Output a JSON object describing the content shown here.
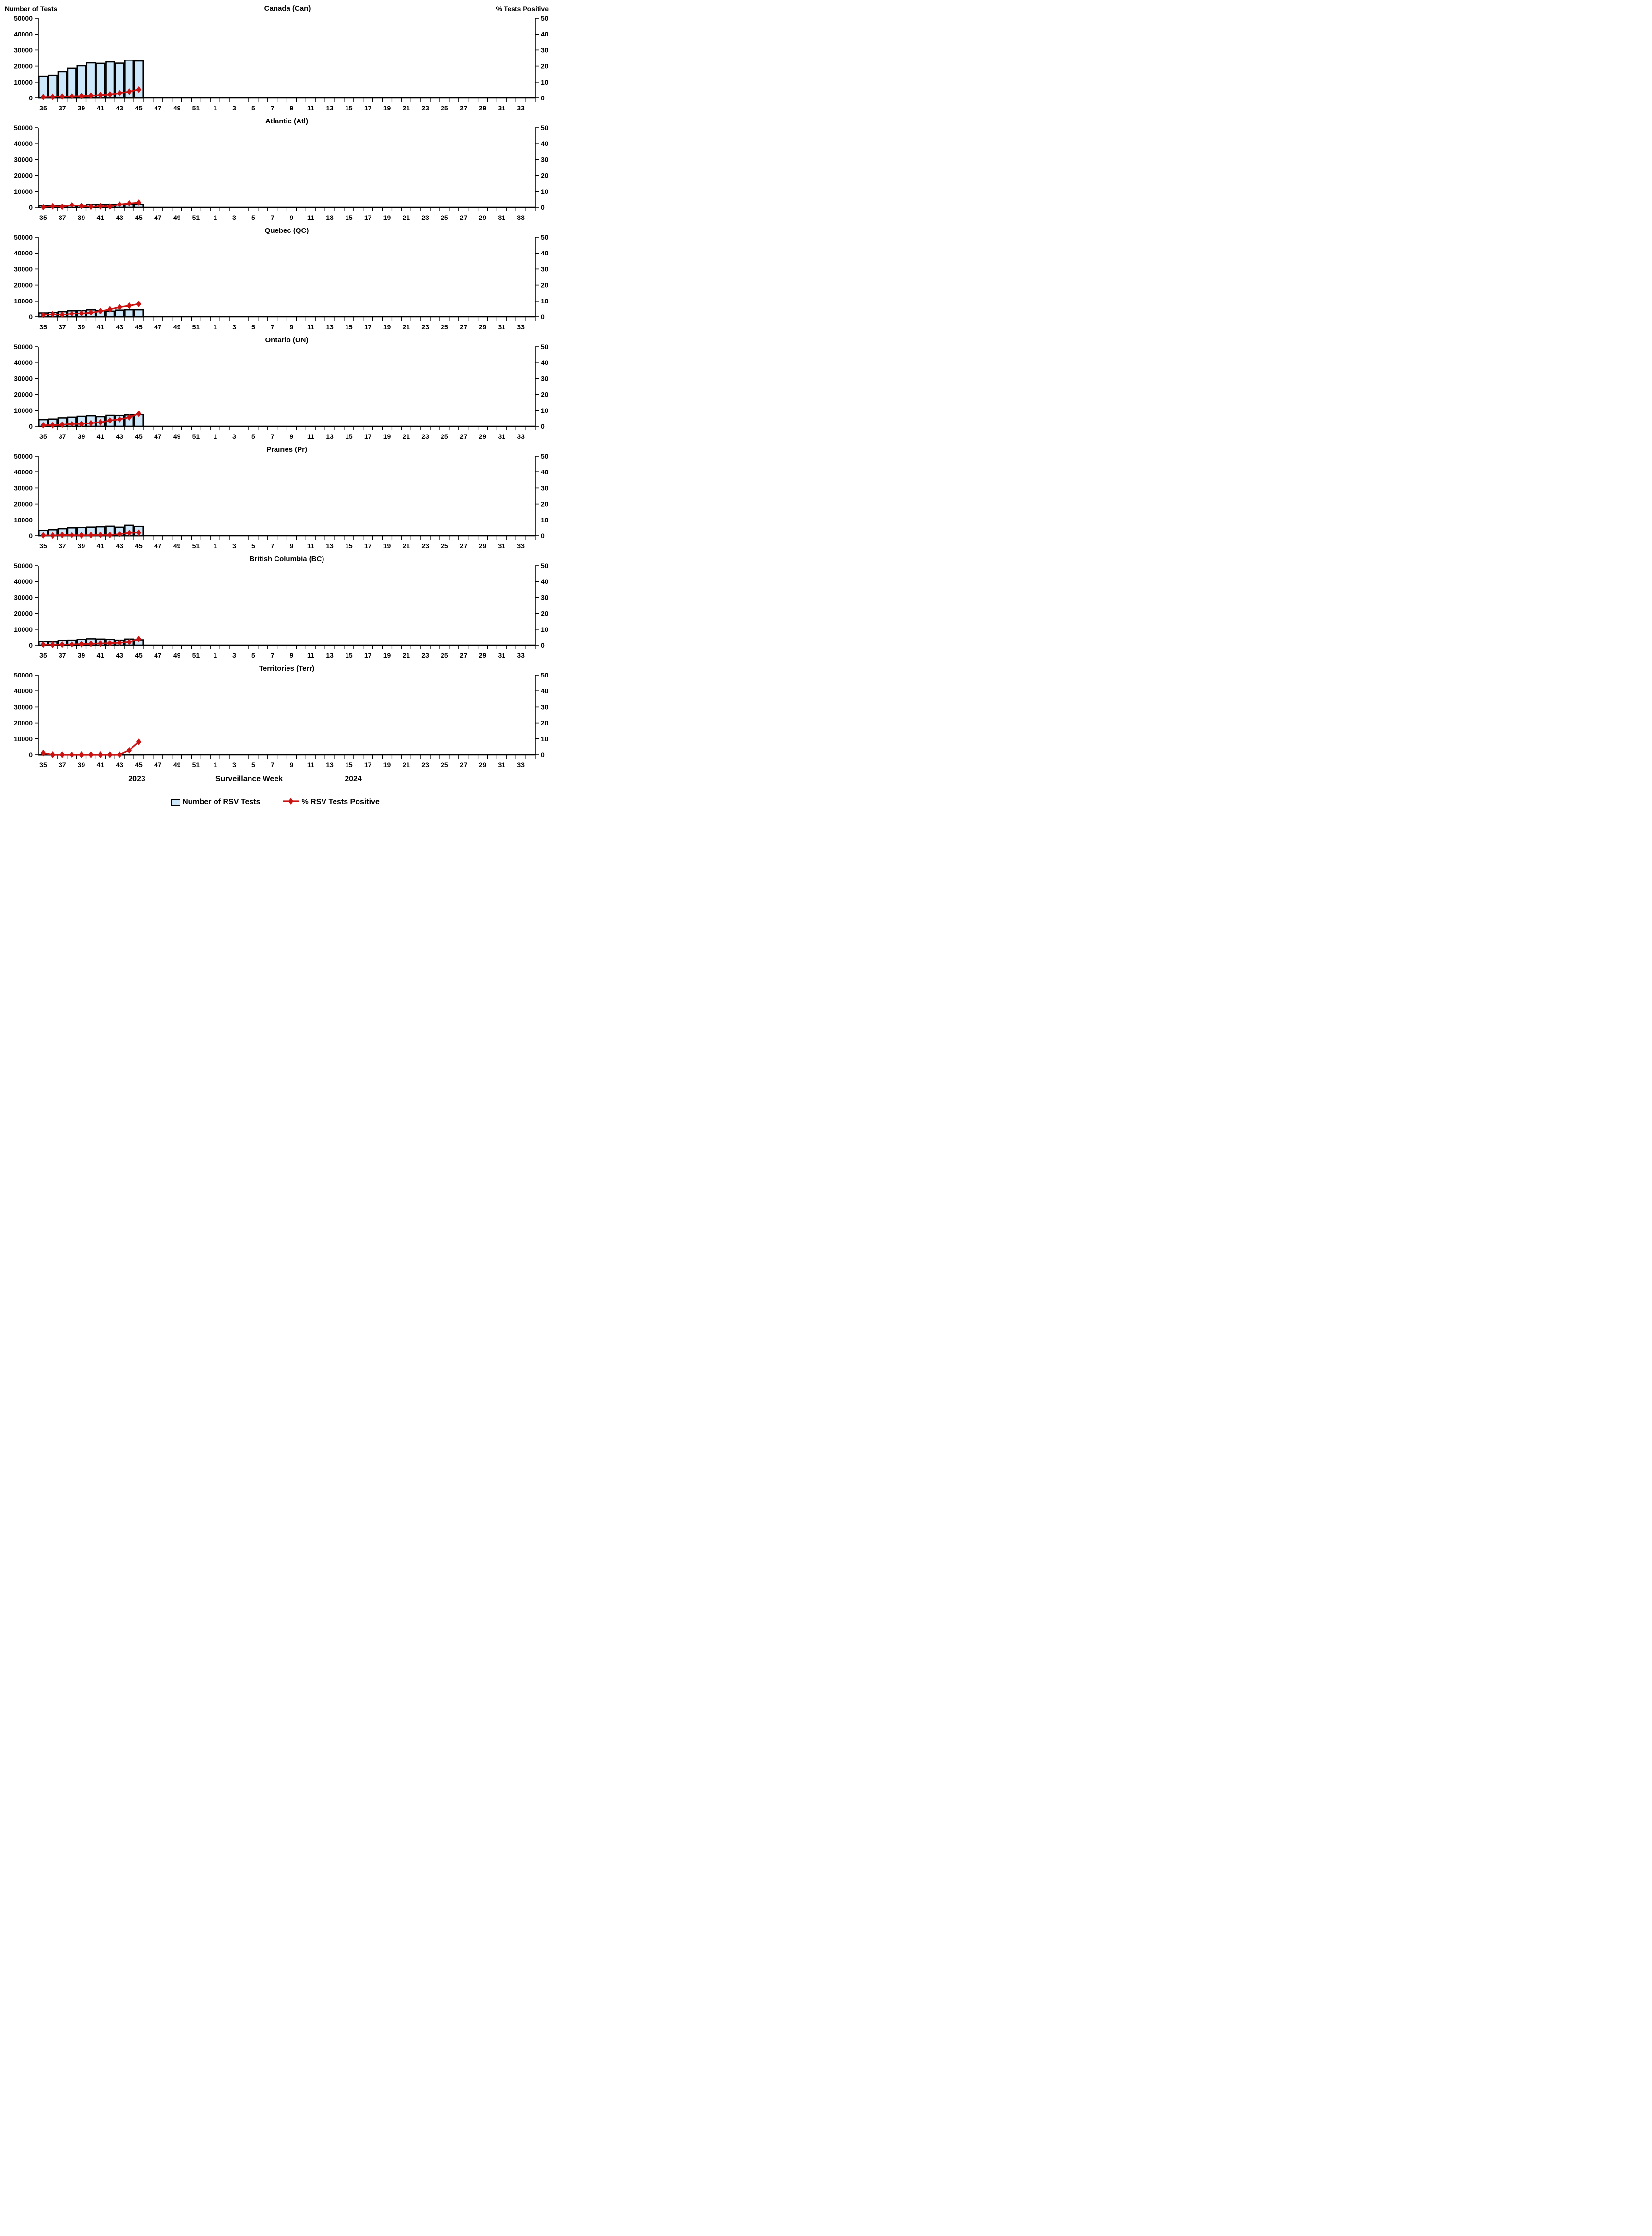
{
  "header": {
    "left_axis_title": "Number of Tests",
    "right_axis_title": "% Tests Positive"
  },
  "footer": {
    "year_left": "2023",
    "axis_title": "Surveillance Week",
    "year_right": "2024"
  },
  "legend": {
    "items": [
      {
        "label": "Number of RSV Tests",
        "marker": "bar-swatch"
      },
      {
        "label": "% RSV Tests Positive",
        "marker": "line-diamond"
      }
    ]
  },
  "colors": {
    "bar_fill": "#cce6fa",
    "bar_border": "#000000",
    "line": "#cc1111",
    "axis": "#000000"
  },
  "axes": {
    "left": {
      "title": "Number of Tests",
      "ticks": [
        0,
        10000,
        20000,
        30000,
        40000,
        50000
      ],
      "max": 50000
    },
    "right": {
      "title": "% Tests Positive",
      "ticks": [
        0,
        10,
        20,
        30,
        40,
        50
      ],
      "max": 50
    },
    "x": {
      "title": "Surveillance Week",
      "weeks_2023": [
        35,
        36,
        37,
        38,
        39,
        40,
        41,
        42,
        43,
        44,
        45,
        46,
        47,
        48,
        49,
        50,
        51,
        52
      ],
      "weeks_2024": [
        1,
        2,
        3,
        4,
        5,
        6,
        7,
        8,
        9,
        10,
        11,
        12,
        13,
        14,
        15,
        16,
        17,
        18,
        19,
        20,
        21,
        22,
        23,
        24,
        25,
        26,
        27,
        28,
        29,
        30,
        31,
        32,
        33,
        34
      ],
      "tick_labels": [
        35,
        37,
        39,
        41,
        43,
        45,
        47,
        49,
        51,
        1,
        3,
        5,
        7,
        9,
        11,
        13,
        15,
        17,
        19,
        21,
        23,
        25,
        27,
        29,
        31,
        33
      ]
    }
  },
  "chart_data": [
    {
      "type": "bar+line",
      "title": "Canada (Can)",
      "categories": [
        35,
        36,
        37,
        38,
        39,
        40,
        41,
        42,
        43,
        44,
        45
      ],
      "ylim_left": [
        0,
        50000
      ],
      "ylim_right": [
        0,
        50
      ],
      "series": [
        {
          "name": "Number of RSV Tests",
          "axis": "left",
          "values": [
            13500,
            14100,
            16600,
            18700,
            20200,
            22000,
            21700,
            22600,
            21800,
            23700,
            23200
          ]
        },
        {
          "name": "% RSV Tests Positive",
          "axis": "right",
          "values": [
            0.6,
            0.7,
            0.9,
            1.1,
            1.2,
            1.5,
            1.8,
            2.2,
            3.0,
            3.9,
            5.2
          ]
        }
      ]
    },
    {
      "type": "bar+line",
      "title": "Atlantic (Atl)",
      "categories": [
        35,
        36,
        37,
        38,
        39,
        40,
        41,
        42,
        43,
        44,
        45
      ],
      "ylim_left": [
        0,
        50000
      ],
      "ylim_right": [
        0,
        50
      ],
      "series": [
        {
          "name": "Number of RSV Tests",
          "axis": "left",
          "values": [
            1100,
            1150,
            1250,
            1350,
            1350,
            1700,
            1850,
            2000,
            1900,
            1950,
            2000
          ]
        },
        {
          "name": "% RSV Tests Positive",
          "axis": "right",
          "values": [
            0.2,
            0.7,
            0.4,
            1.5,
            0.9,
            0.4,
            0.7,
            0.6,
            1.9,
            2.5,
            3.0
          ]
        }
      ]
    },
    {
      "type": "bar+line",
      "title": "Quebec (QC)",
      "categories": [
        35,
        36,
        37,
        38,
        39,
        40,
        41,
        42,
        43,
        44,
        45
      ],
      "ylim_left": [
        0,
        50000
      ],
      "ylim_right": [
        0,
        50
      ],
      "series": [
        {
          "name": "Number of RSV Tests",
          "axis": "left",
          "values": [
            2550,
            2850,
            3300,
            3850,
            3950,
            4450,
            3850,
            3650,
            4300,
            4500,
            4500
          ]
        },
        {
          "name": "% RSV Tests Positive",
          "axis": "right",
          "values": [
            1.2,
            1.7,
            1.4,
            2.0,
            2.2,
            2.7,
            3.6,
            4.8,
            6.1,
            7.0,
            8.1
          ]
        }
      ]
    },
    {
      "type": "bar+line",
      "title": "Ontario (ON)",
      "categories": [
        35,
        36,
        37,
        38,
        39,
        40,
        41,
        42,
        43,
        44,
        45
      ],
      "ylim_left": [
        0,
        50000
      ],
      "ylim_right": [
        0,
        50
      ],
      "series": [
        {
          "name": "Number of RSV Tests",
          "axis": "left",
          "values": [
            4200,
            4580,
            5300,
            5750,
            6300,
            6600,
            6050,
            6900,
            6850,
            7150,
            7300
          ]
        },
        {
          "name": "% RSV Tests Positive",
          "axis": "right",
          "values": [
            0.7,
            0.7,
            1.0,
            1.5,
            1.5,
            2.0,
            2.5,
            3.7,
            4.4,
            5.7,
            7.9
          ]
        }
      ]
    },
    {
      "type": "bar+line",
      "title": "Prairies (Pr)",
      "categories": [
        35,
        36,
        37,
        38,
        39,
        40,
        41,
        42,
        43,
        44,
        45
      ],
      "ylim_left": [
        0,
        50000
      ],
      "ylim_right": [
        0,
        50
      ],
      "series": [
        {
          "name": "Number of RSV Tests",
          "axis": "left",
          "values": [
            3400,
            3850,
            4500,
            5050,
            5200,
            5500,
            5700,
            6050,
            5450,
            6650,
            5950
          ]
        },
        {
          "name": "% RSV Tests Positive",
          "axis": "right",
          "values": [
            0.3,
            0.2,
            0.5,
            0.4,
            0.3,
            0.4,
            0.6,
            0.5,
            1.0,
            1.8,
            2.0
          ]
        }
      ]
    },
    {
      "type": "bar+line",
      "title": "British Columbia (BC)",
      "categories": [
        35,
        36,
        37,
        38,
        39,
        40,
        41,
        42,
        43,
        44,
        45
      ],
      "ylim_left": [
        0,
        50000
      ],
      "ylim_right": [
        0,
        50
      ],
      "series": [
        {
          "name": "Number of RSV Tests",
          "axis": "left",
          "values": [
            2200,
            2100,
            3000,
            3250,
            3800,
            4100,
            3950,
            3750,
            3250,
            3950,
            3450
          ]
        },
        {
          "name": "% RSV Tests Positive",
          "axis": "right",
          "values": [
            0.4,
            0.3,
            0.4,
            0.5,
            0.7,
            0.9,
            1.1,
            1.3,
            1.5,
            2.0,
            4.0
          ]
        }
      ]
    },
    {
      "type": "bar+line",
      "title": "Territories (Terr)",
      "categories": [
        35,
        36,
        37,
        38,
        39,
        40,
        41,
        42,
        43,
        44,
        45
      ],
      "ylim_left": [
        0,
        50000
      ],
      "ylim_right": [
        0,
        50
      ],
      "series": [
        {
          "name": "Number of RSV Tests",
          "axis": "left",
          "values": [
            100,
            100,
            100,
            100,
            100,
            100,
            100,
            100,
            100,
            150,
            150
          ]
        },
        {
          "name": "% RSV Tests Positive",
          "axis": "right",
          "values": [
            1.0,
            0,
            0,
            0,
            0,
            0,
            0,
            0,
            0,
            2.8,
            8.1
          ]
        }
      ]
    }
  ]
}
